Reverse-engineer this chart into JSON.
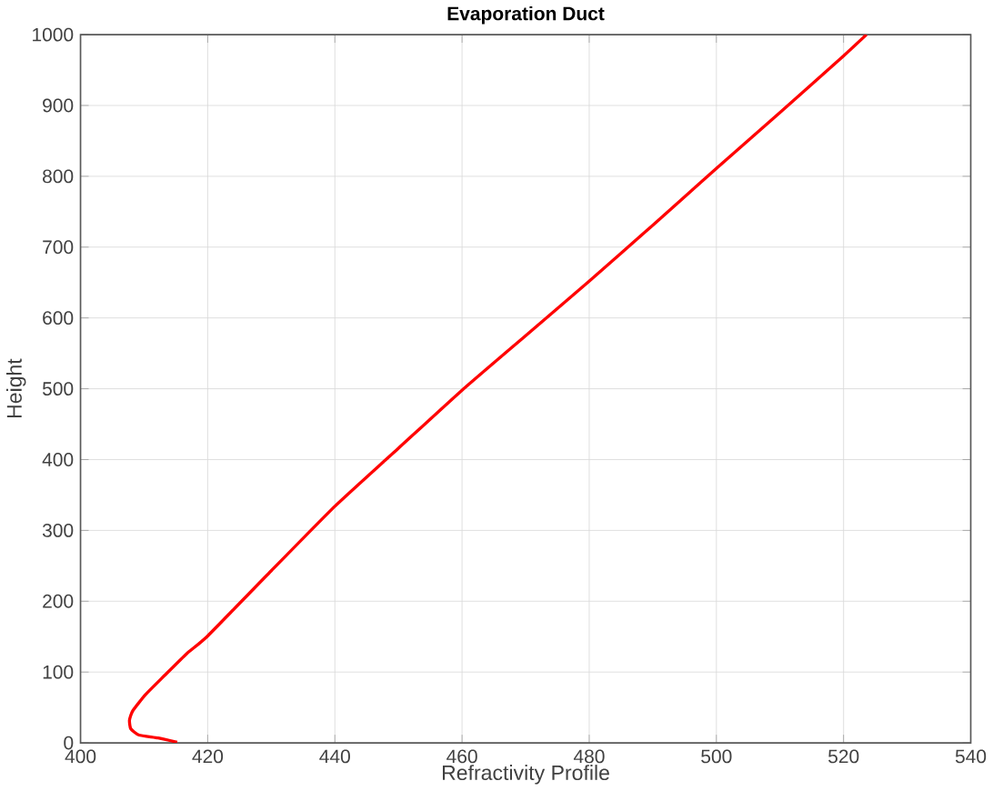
{
  "chart_data": {
    "type": "line",
    "title": "Evaporation Duct",
    "xlabel": "Refractivity Profile",
    "ylabel": "Height",
    "xlim": [
      400,
      540
    ],
    "ylim": [
      0,
      1000
    ],
    "xticks": [
      400,
      420,
      440,
      460,
      480,
      500,
      520,
      540
    ],
    "yticks": [
      0,
      100,
      200,
      300,
      400,
      500,
      600,
      700,
      800,
      900,
      1000
    ],
    "grid": true,
    "series": [
      {
        "color": "#ff0000",
        "x": [
          415.2,
          412.2,
          409.2,
          407.9,
          407.7,
          408.2,
          410.2,
          413.2,
          416.7,
          420,
          430,
          440,
          450,
          460,
          470,
          480,
          490,
          500,
          510,
          520,
          523.6
        ],
        "values": [
          1,
          7,
          11,
          20,
          32,
          45,
          68,
          95,
          126,
          151,
          243,
          334,
          416,
          498,
          575,
          652,
          731,
          811,
          890,
          970,
          1000
        ]
      }
    ]
  }
}
